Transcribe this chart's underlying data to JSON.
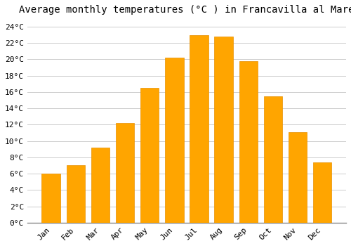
{
  "title": "Average monthly temperatures (°C ) in Francavilla al Mare",
  "months": [
    "Jan",
    "Feb",
    "Mar",
    "Apr",
    "May",
    "Jun",
    "Jul",
    "Aug",
    "Sep",
    "Oct",
    "Nov",
    "Dec"
  ],
  "temperatures": [
    6.0,
    7.0,
    9.2,
    12.2,
    16.5,
    20.2,
    23.0,
    22.8,
    19.8,
    15.5,
    11.1,
    7.4
  ],
  "bar_color": "#FFA500",
  "bar_edge_color": "#E89000",
  "ylim": [
    0,
    25
  ],
  "yticks": [
    0,
    2,
    4,
    6,
    8,
    10,
    12,
    14,
    16,
    18,
    20,
    22,
    24
  ],
  "background_color": "#FFFFFF",
  "grid_color": "#CCCCCC",
  "title_fontsize": 10,
  "tick_fontsize": 8,
  "font_family": "monospace"
}
